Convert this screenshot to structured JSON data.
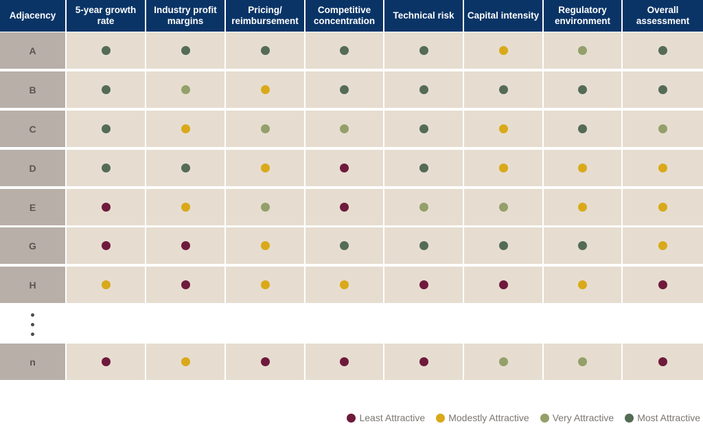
{
  "table": {
    "headers": [
      "Adjacency",
      "5-year growth rate",
      "Industry profit margins",
      "Pricing/ reimbursement",
      "Competitive concentration",
      "Technical risk",
      "Capital intensity",
      "Regulatory environment",
      "Overall assessment"
    ],
    "rows": [
      {
        "label": "A",
        "ratings": [
          "most",
          "most",
          "most",
          "most",
          "most",
          "modestly",
          "very",
          "most"
        ]
      },
      {
        "label": "B",
        "ratings": [
          "most",
          "very",
          "modestly",
          "most",
          "most",
          "most",
          "most",
          "most"
        ]
      },
      {
        "label": "C",
        "ratings": [
          "most",
          "modestly",
          "very",
          "very",
          "most",
          "modestly",
          "most",
          "very"
        ]
      },
      {
        "label": "D",
        "ratings": [
          "most",
          "most",
          "modestly",
          "least",
          "most",
          "modestly",
          "modestly",
          "modestly"
        ]
      },
      {
        "label": "E",
        "ratings": [
          "least",
          "modestly",
          "very",
          "least",
          "very",
          "very",
          "modestly",
          "modestly"
        ]
      },
      {
        "label": "G",
        "ratings": [
          "least",
          "least",
          "modestly",
          "most",
          "most",
          "most",
          "most",
          "modestly"
        ]
      },
      {
        "label": "H",
        "ratings": [
          "modestly",
          "least",
          "modestly",
          "modestly",
          "least",
          "least",
          "modestly",
          "least"
        ]
      },
      {
        "label": "n",
        "ratings": [
          "least",
          "modestly",
          "least",
          "least",
          "least",
          "very",
          "very",
          "least"
        ]
      }
    ]
  },
  "legend": [
    {
      "key": "least",
      "label": "Least Attractive",
      "color": "#6e1a3c"
    },
    {
      "key": "modestly",
      "label": "Modestly Attractive",
      "color": "#d9a91a"
    },
    {
      "key": "very",
      "label": "Very Attractive",
      "color": "#93a06a"
    },
    {
      "key": "most",
      "label": "Most Attractive",
      "color": "#546b56"
    }
  ]
}
